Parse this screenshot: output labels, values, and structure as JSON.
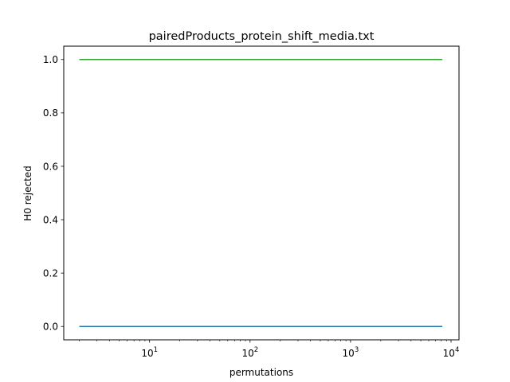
{
  "chart_data": {
    "type": "line",
    "title": "pairedProducts_protein_shift_media.txt",
    "xlabel": "permutations",
    "ylabel": "H0 rejected",
    "xscale": "log",
    "xlim": [
      1.4,
      12000
    ],
    "ylim": [
      -0.05,
      1.05
    ],
    "grid": false,
    "xticks": [
      {
        "value": 10,
        "base": "10",
        "exp": "1"
      },
      {
        "value": 100,
        "base": "10",
        "exp": "2"
      },
      {
        "value": 1000,
        "base": "10",
        "exp": "3"
      },
      {
        "value": 10000,
        "base": "10",
        "exp": "4"
      }
    ],
    "yticks": [
      {
        "value": 0.0,
        "label": "0.0"
      },
      {
        "value": 0.2,
        "label": "0.2"
      },
      {
        "value": 0.4,
        "label": "0.4"
      },
      {
        "value": 0.6,
        "label": "0.6"
      },
      {
        "value": 0.8,
        "label": "0.8"
      },
      {
        "value": 1.0,
        "label": "1.0"
      }
    ],
    "series": [
      {
        "color": "#1f77b4",
        "x": [
          2,
          8192
        ],
        "y": [
          0.0,
          0.0
        ]
      },
      {
        "color": "#ff7f0e",
        "x": [
          2,
          8192
        ],
        "y": [
          1.0,
          1.0
        ]
      },
      {
        "color": "#2ca02c",
        "x": [
          2,
          8192
        ],
        "y": [
          1.0,
          1.0
        ]
      }
    ]
  }
}
